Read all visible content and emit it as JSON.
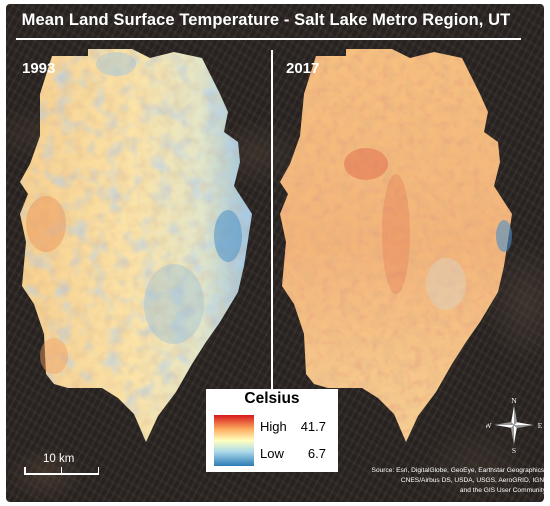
{
  "map": {
    "title": "Mean Land Surface Temperature - Salt Lake Metro Region, UT",
    "panels": [
      {
        "year": "1993"
      },
      {
        "year": "2017"
      }
    ],
    "legend": {
      "title": "Celsius",
      "high_label": "High",
      "high_value": "41.7",
      "low_label": "Low",
      "low_value": "6.7",
      "ramp_colors": [
        "#d7191c",
        "#fdae61",
        "#ffffbf",
        "#abd9e9",
        "#2c7bb6"
      ]
    },
    "scale_bar": {
      "label": "10 km"
    },
    "compass": {
      "n": "N",
      "s": "S",
      "e": "E",
      "w": "W"
    },
    "attribution": [
      "Source: Esri, DigitalGlobe, GeoEye, Earthstar Geographics,",
      "CNES/Airbus DS, USDA, USGS, AeroGRID, IGN,",
      "and the GIS User Community"
    ],
    "colors": {
      "hot": "#d7191c",
      "warm": "#fdae61",
      "mid": "#ffffbf",
      "cool": "#abd9e9",
      "cold": "#2c7bb6",
      "basemap": "#2b2522"
    }
  }
}
